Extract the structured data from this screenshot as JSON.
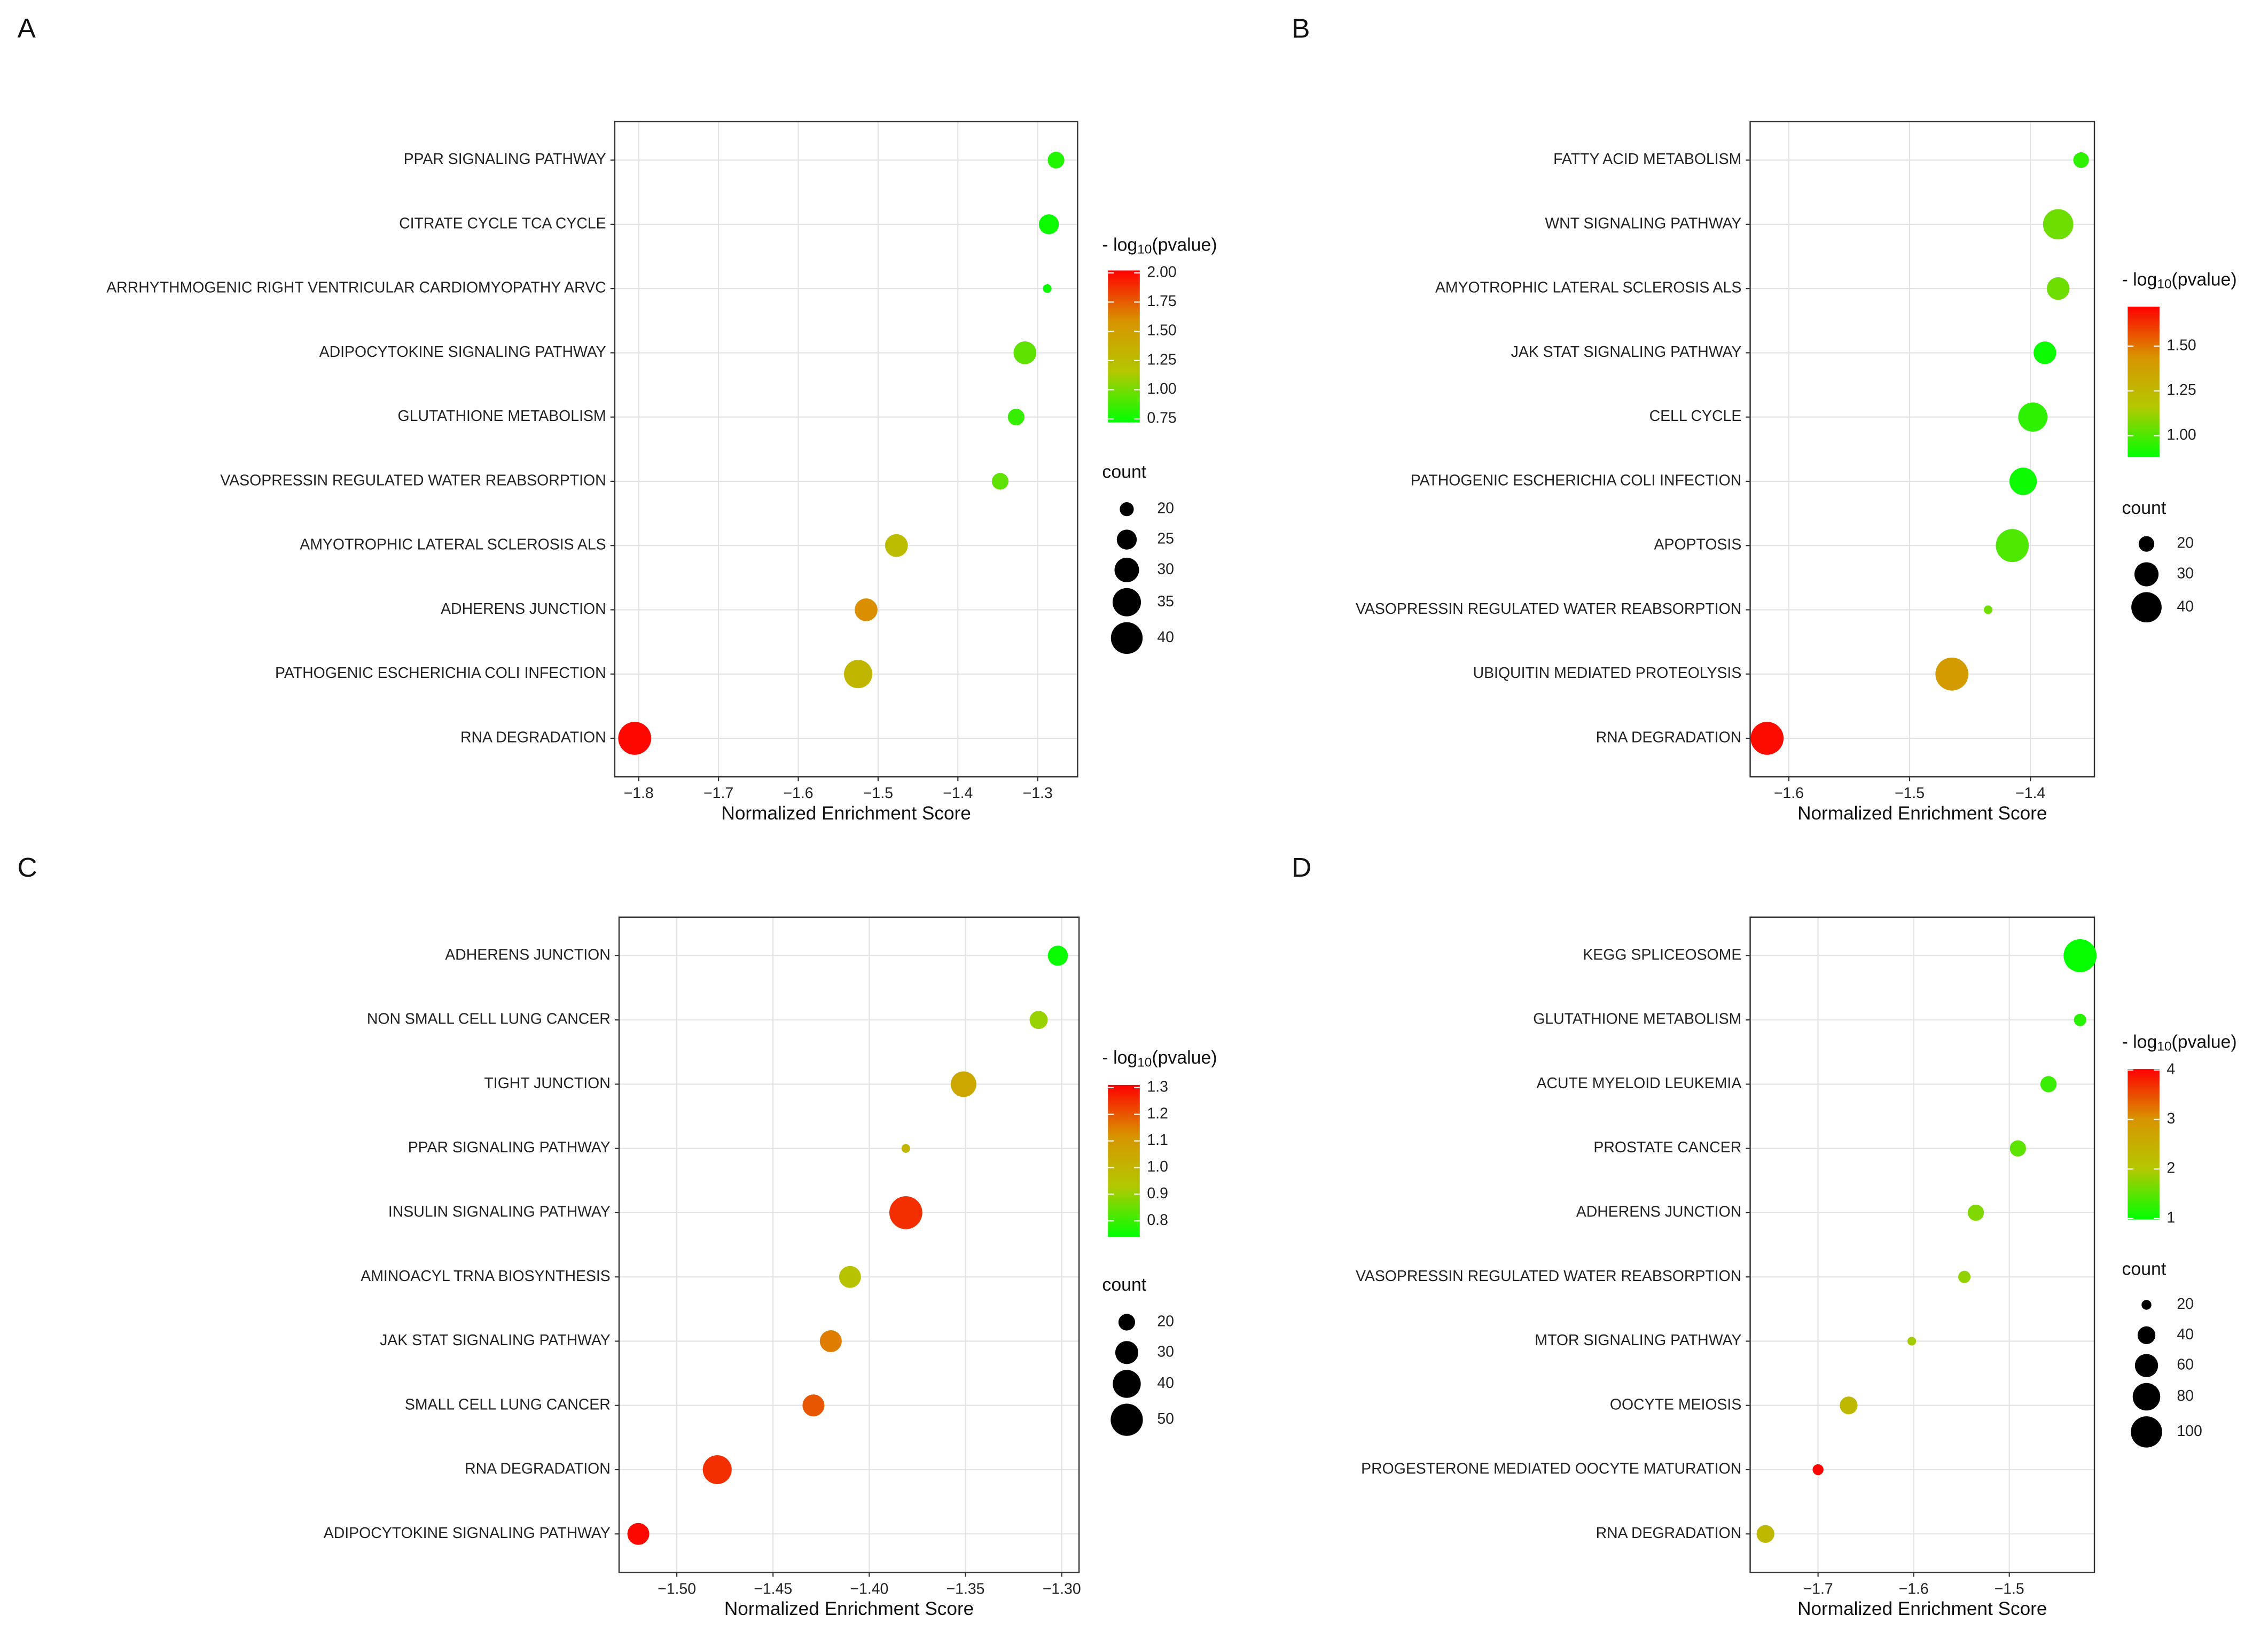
{
  "chart_data": [
    {
      "type": "scatter",
      "label": "A",
      "x_label": "Normalized Enrichment Score",
      "colorbar_title": [
        "- log",
        "10",
        "(pvalue)"
      ],
      "size_title": "count",
      "categories": [
        "PPAR SIGNALING PATHWAY",
        "CITRATE CYCLE TCA CYCLE",
        "ARRHYTHMOGENIC RIGHT VENTRICULAR CARDIOMYOPATHY ARVC",
        "ADIPOCYTOKINE SIGNALING PATHWAY",
        "GLUTATHIONE METABOLISM",
        "VASOPRESSIN REGULATED WATER REABSORPTION",
        "AMYOTROPHIC LATERAL SCLEROSIS ALS",
        "ADHERENS JUNCTION",
        "PATHOGENIC ESCHERICHIA COLI INFECTION",
        "RNA DEGRADATION"
      ],
      "values": [
        -1.277,
        -1.286,
        -1.288,
        -1.316,
        -1.327,
        -1.347,
        -1.477,
        -1.515,
        -1.525,
        -1.805
      ],
      "counts": [
        22,
        25,
        17,
        28,
        22,
        22,
        28,
        28,
        35,
        42
      ],
      "color_values": [
        0.8,
        0.75,
        0.75,
        0.95,
        0.85,
        0.95,
        1.25,
        1.6,
        1.3,
        2.0
      ],
      "xlim": [
        -1.83,
        -1.25
      ],
      "xticks": [
        {
          "value": -1.8,
          "label": "−1.8"
        },
        {
          "value": -1.7,
          "label": "−1.7"
        },
        {
          "value": -1.6,
          "label": "−1.6"
        },
        {
          "value": -1.5,
          "label": "−1.5"
        },
        {
          "value": -1.4,
          "label": "−1.4"
        },
        {
          "value": -1.3,
          "label": "−1.3"
        }
      ],
      "clim": [
        0.72,
        2.02
      ],
      "cticks": [
        {
          "value": 0.75,
          "label": "0.75"
        },
        {
          "value": 1.0,
          "label": "1.00"
        },
        {
          "value": 1.25,
          "label": "1.25"
        },
        {
          "value": 1.5,
          "label": "1.50"
        },
        {
          "value": 1.75,
          "label": "1.75"
        },
        {
          "value": 2.0,
          "label": "2.00"
        }
      ],
      "size_ticks": [
        20,
        25,
        30,
        35,
        40
      ],
      "colormap": [
        "#00ff00",
        "#b4c800",
        "#d89400",
        "#ff0000"
      ],
      "grid": true
    },
    {
      "type": "scatter",
      "label": "B",
      "x_label": "Normalized Enrichment Score",
      "colorbar_title": [
        "- log",
        "10",
        "(pvalue)"
      ],
      "size_title": "count",
      "categories": [
        "FATTY ACID METABOLISM",
        "WNT SIGNALING PATHWAY",
        "AMYOTROPHIC LATERAL SCLEROSIS ALS",
        "JAK STAT SIGNALING PATHWAY",
        "CELL CYCLE",
        "PATHOGENIC ESCHERICHIA COLI INFECTION",
        "APOPTOSIS",
        "VASOPRESSIN REGULATED WATER REABSORPTION",
        "UBIQUITIN MEDIATED PROTEOLYSIS",
        "RNA DEGRADATION"
      ],
      "values": [
        -1.358,
        -1.377,
        -1.377,
        -1.388,
        -1.398,
        -1.406,
        -1.415,
        -1.435,
        -1.465,
        -1.618
      ],
      "counts": [
        20,
        40,
        28,
        28,
        38,
        35,
        45,
        15,
        45,
        45
      ],
      "color_values": [
        0.95,
        1.05,
        1.05,
        0.9,
        0.95,
        0.9,
        1.0,
        1.05,
        1.4,
        1.7
      ],
      "xlim": [
        -1.632,
        -1.347
      ],
      "xticks": [
        {
          "value": -1.6,
          "label": "−1.6"
        },
        {
          "value": -1.5,
          "label": "−1.5"
        },
        {
          "value": -1.4,
          "label": "−1.4"
        }
      ],
      "clim": [
        0.88,
        1.72
      ],
      "cticks": [
        {
          "value": 1.0,
          "label": "1.00"
        },
        {
          "value": 1.25,
          "label": "1.25"
        },
        {
          "value": 1.5,
          "label": "1.50"
        }
      ],
      "size_ticks": [
        20,
        30,
        40
      ],
      "colormap": [
        "#00ff00",
        "#b4c800",
        "#d89400",
        "#ff0000"
      ],
      "grid": true
    },
    {
      "type": "scatter",
      "label": "C",
      "x_label": "Normalized Enrichment Score",
      "colorbar_title": [
        "- log",
        "10",
        "(pvalue)"
      ],
      "size_title": "count",
      "categories": [
        "ADHERENS JUNCTION",
        "NON SMALL CELL LUNG CANCER",
        "TIGHT JUNCTION",
        "PPAR SIGNALING PATHWAY",
        "INSULIN SIGNALING PATHWAY",
        "AMINOACYL TRNA BIOSYNTHESIS",
        "JAK STAT SIGNALING PATHWAY",
        "SMALL CELL LUNG CANCER",
        "RNA DEGRADATION",
        "ADIPOCYTOKINE SIGNALING PATHWAY"
      ],
      "values": [
        -1.302,
        -1.312,
        -1.351,
        -1.381,
        -1.381,
        -1.41,
        -1.42,
        -1.429,
        -1.479,
        -1.52
      ],
      "counts": [
        25,
        22,
        35,
        12,
        52,
        28,
        28,
        28,
        42,
        28
      ],
      "color_values": [
        0.75,
        0.9,
        1.05,
        1.0,
        1.25,
        0.95,
        1.15,
        1.2,
        1.25,
        1.3
      ],
      "xlim": [
        -1.53,
        -1.291
      ],
      "xticks": [
        {
          "value": -1.5,
          "label": "−1.50"
        },
        {
          "value": -1.45,
          "label": "−1.45"
        },
        {
          "value": -1.4,
          "label": "−1.40"
        },
        {
          "value": -1.35,
          "label": "−1.35"
        },
        {
          "value": -1.3,
          "label": "−1.30"
        }
      ],
      "clim": [
        0.74,
        1.31
      ],
      "cticks": [
        0.8,
        0.9,
        {
          "value": 1.0,
          "label": "1.0"
        },
        1.1,
        1.2,
        1.3
      ],
      "size_ticks": [
        20,
        30,
        40,
        50
      ],
      "colormap": [
        "#00ff00",
        "#b4c800",
        "#d89400",
        "#ff0000"
      ],
      "grid": true
    },
    {
      "type": "scatter",
      "label": "D",
      "x_label": "Normalized Enrichment Score",
      "colorbar_title": [
        "- log",
        "10",
        "(pvalue)"
      ],
      "size_title": "count",
      "categories": [
        "KEGG SPLICEOSOME",
        "GLUTATHIONE METABOLISM",
        "ACUTE MYELOID LEUKEMIA",
        "PROSTATE CANCER",
        "ADHERENS JUNCTION",
        "VASOPRESSIN REGULATED WATER REABSORPTION",
        "MTOR SIGNALING PATHWAY",
        "OOCYTE MEIOSIS",
        "PROGESTERONE MEDIATED OOCYTE MATURATION",
        "RNA DEGRADATION"
      ],
      "values": [
        -1.426,
        -1.426,
        -1.459,
        -1.491,
        -1.535,
        -1.547,
        -1.602,
        -1.668,
        -1.7,
        -1.755
      ],
      "counts": [
        110,
        25,
        35,
        35,
        35,
        25,
        18,
        40,
        22,
        40
      ],
      "color_values": [
        1.0,
        1.2,
        1.3,
        1.5,
        1.7,
        1.8,
        1.9,
        2.3,
        4.0,
        2.3
      ],
      "xlim": [
        -1.771,
        -1.411
      ],
      "xticks": [
        {
          "value": -1.7,
          "label": "−1.7"
        },
        {
          "value": -1.6,
          "label": "−1.6"
        },
        {
          "value": -1.5,
          "label": "−1.5"
        }
      ],
      "clim": [
        0.98,
        4.02
      ],
      "cticks": [
        1,
        2,
        3,
        4
      ],
      "size_ticks": [
        20,
        40,
        60,
        80,
        100
      ],
      "colormap": [
        "#00ff00",
        "#b4c800",
        "#d89400",
        "#ff0000"
      ],
      "grid": true
    }
  ]
}
